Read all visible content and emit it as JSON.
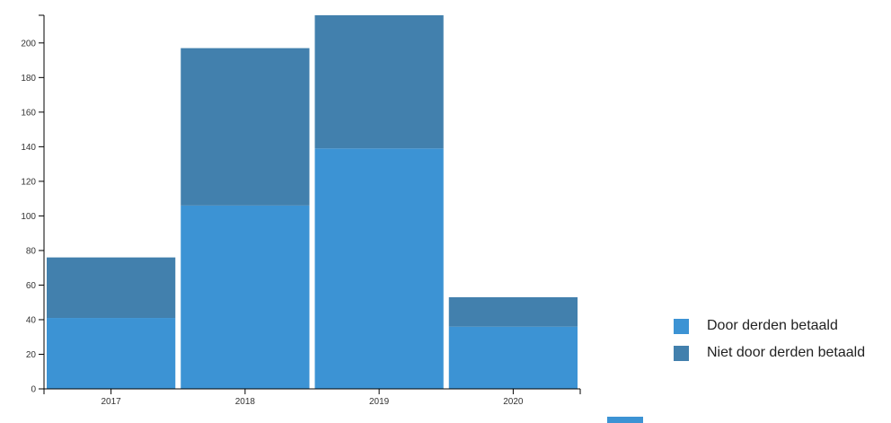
{
  "chart_data": {
    "type": "bar",
    "stacked": true,
    "categories": [
      "2017",
      "2018",
      "2019",
      "2020"
    ],
    "series": [
      {
        "name": "Door derden betaald",
        "values": [
          41,
          106,
          139,
          36
        ],
        "color": "#3c93d4"
      },
      {
        "name": "Niet door derden betaald",
        "values": [
          35,
          91,
          77,
          17
        ],
        "color": "#4280ad"
      }
    ],
    "y_ticks": [
      "0",
      "20",
      "40",
      "60",
      "80",
      "100",
      "120",
      "140",
      "160",
      "180",
      "200"
    ],
    "ylim": [
      0,
      216
    ],
    "legend_position": "right",
    "grid": false
  },
  "legend": {
    "items": [
      {
        "label": "Door derden betaald",
        "color": "#3c93d4"
      },
      {
        "label": "Niet door derden betaald",
        "color": "#4280ad"
      }
    ]
  },
  "colors": {
    "axis": "#000000",
    "text": "#333333"
  }
}
